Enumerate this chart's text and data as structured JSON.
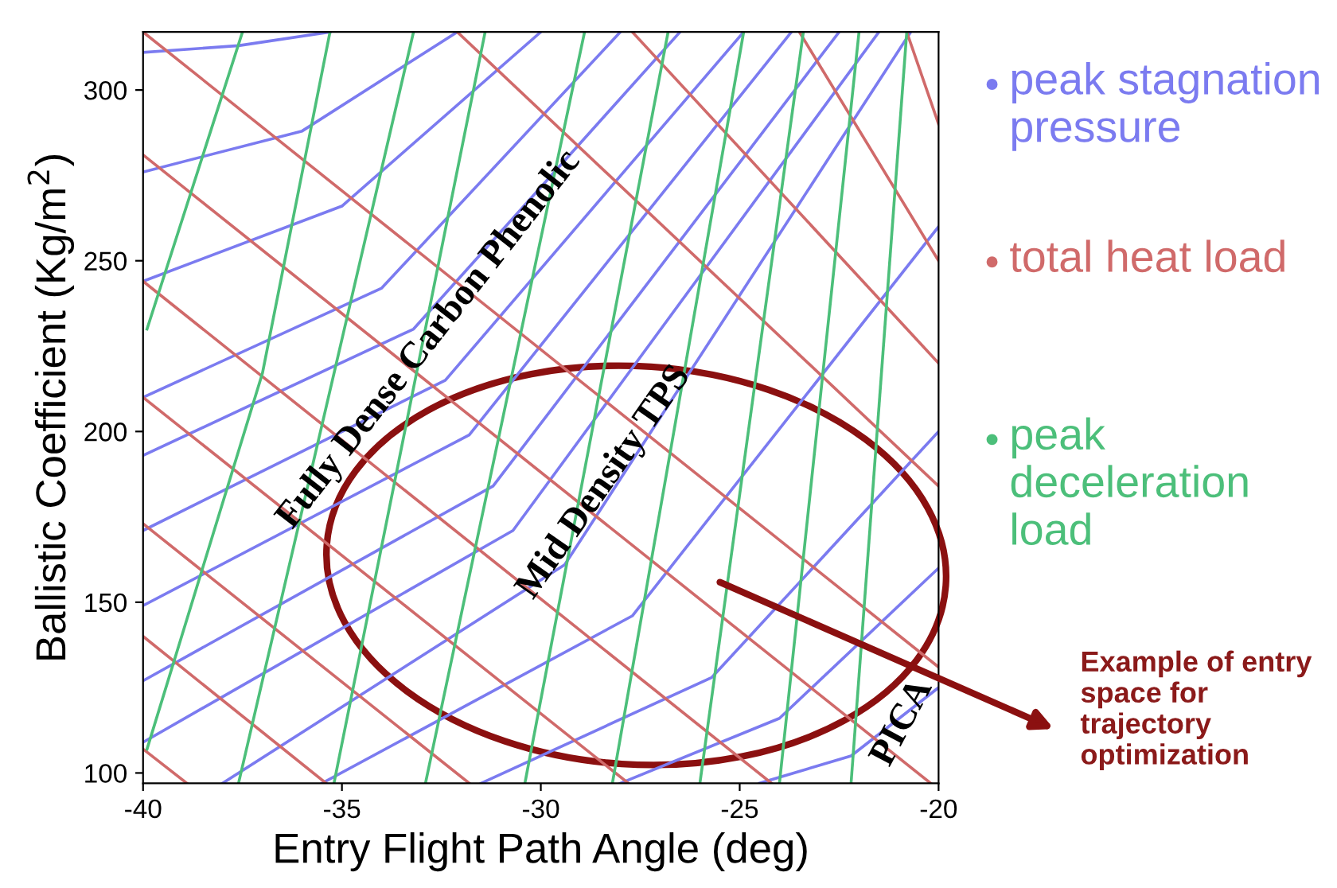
{
  "chart_data": {
    "type": "line",
    "xlabel": "Entry Flight Path Angle (deg)",
    "ylabel": "Ballistic Coefficient (Kg/m$^{2}$)",
    "xlim": [
      -40,
      -20
    ],
    "ylim": [
      97,
      317
    ],
    "xticks": [
      -40,
      -35,
      -30,
      -25,
      -20
    ],
    "yticks": [
      100,
      150,
      200,
      250,
      300
    ],
    "legend": "right",
    "grid": false,
    "marker": "none",
    "line_style": "solid",
    "series": [
      {
        "name": "peak stagnation pressure",
        "color": "#7b7bf0",
        "x": [
          -40,
          -37.6,
          -35.3
        ],
        "values": [
          311,
          313,
          317
        ]
      },
      {
        "color": "#7b7bf0",
        "x": [
          -40,
          -36,
          -32.1
        ],
        "values": [
          276,
          288,
          317
        ]
      },
      {
        "color": "#7b7bf0",
        "x": [
          -40,
          -35,
          -30
        ],
        "values": [
          244,
          266,
          317
        ]
      },
      {
        "color": "#7b7bf0",
        "x": [
          -40,
          -34,
          -28
        ],
        "values": [
          210,
          242,
          317
        ]
      },
      {
        "color": "#7b7bf0",
        "x": [
          -40,
          -33.2,
          -26.5
        ],
        "values": [
          193,
          230,
          317
        ]
      },
      {
        "color": "#7b7bf0",
        "x": [
          -40,
          -32.4,
          -24.9
        ],
        "values": [
          171,
          215,
          317
        ]
      },
      {
        "color": "#7b7bf0",
        "x": [
          -40,
          -31.8,
          -23.7
        ],
        "values": [
          149,
          199,
          317
        ]
      },
      {
        "color": "#7b7bf0",
        "x": [
          -40,
          -31.2,
          -22.5
        ],
        "values": [
          127,
          184,
          317
        ]
      },
      {
        "color": "#7b7bf0",
        "x": [
          -40,
          -30.7,
          -21.5
        ],
        "values": [
          109,
          171,
          317
        ]
      },
      {
        "color": "#7b7bf0",
        "x": [
          -38,
          -29.4,
          -20.7
        ],
        "values": [
          97,
          161,
          317
        ]
      },
      {
        "color": "#7b7bf0",
        "x": [
          -35.5,
          -27.7,
          -20
        ],
        "values": [
          97,
          146,
          260
        ]
      },
      {
        "color": "#7b7bf0",
        "x": [
          -31.5,
          -25.7,
          -20
        ],
        "values": [
          97,
          128,
          200
        ]
      },
      {
        "color": "#7b7bf0",
        "x": [
          -28,
          -24,
          -20
        ],
        "values": [
          97,
          116,
          160
        ]
      },
      {
        "color": "#7b7bf0",
        "x": [
          -24.5,
          -22.2,
          -20
        ],
        "values": [
          97,
          105,
          125
        ]
      },
      {
        "name": "total heat load",
        "color": "#d06a6a",
        "x": [
          -40,
          -20
        ],
        "values": [
          317,
          131
        ]
      },
      {
        "color": "#d06a6a",
        "x": [
          -40,
          -20.2
        ],
        "values": [
          281,
          97
        ]
      },
      {
        "color": "#d06a6a",
        "x": [
          -40,
          -24.2
        ],
        "values": [
          244,
          97
        ]
      },
      {
        "color": "#d06a6a",
        "x": [
          -40,
          -27.8
        ],
        "values": [
          210,
          97
        ]
      },
      {
        "color": "#d06a6a",
        "x": [
          -40,
          -31.8
        ],
        "values": [
          173,
          97
        ]
      },
      {
        "color": "#d06a6a",
        "x": [
          -40,
          -35.4
        ],
        "values": [
          140,
          97
        ]
      },
      {
        "color": "#d06a6a",
        "x": [
          -40,
          -38.9
        ],
        "values": [
          107,
          97
        ]
      },
      {
        "color": "#d06a6a",
        "x": [
          -32.1,
          -20
        ],
        "values": [
          317,
          184
        ]
      },
      {
        "color": "#d06a6a",
        "x": [
          -27.7,
          -20
        ],
        "values": [
          317,
          220
        ]
      },
      {
        "color": "#d06a6a",
        "x": [
          -23.5,
          -20
        ],
        "values": [
          317,
          250
        ]
      },
      {
        "color": "#d06a6a",
        "x": [
          -20.8,
          -20
        ],
        "values": [
          317,
          290
        ]
      },
      {
        "name": "peak deceleration load",
        "color": "#4cbf7a",
        "x": [
          -39.9,
          -37.5
        ],
        "values": [
          230,
          317
        ]
      },
      {
        "color": "#4cbf7a",
        "x": [
          -39.9,
          -37,
          -35.3
        ],
        "values": [
          107,
          217,
          317
        ]
      },
      {
        "color": "#4cbf7a",
        "x": [
          -37.6,
          -33.2
        ],
        "values": [
          97,
          317
        ]
      },
      {
        "color": "#4cbf7a",
        "x": [
          -35.2,
          -31.4
        ],
        "values": [
          97,
          317
        ]
      },
      {
        "color": "#4cbf7a",
        "x": [
          -32.9,
          -28.9
        ],
        "values": [
          97,
          317
        ]
      },
      {
        "color": "#4cbf7a",
        "x": [
          -30.4,
          -26.8
        ],
        "values": [
          97,
          317
        ]
      },
      {
        "color": "#4cbf7a",
        "x": [
          -28.2,
          -24.9
        ],
        "values": [
          97,
          317
        ]
      },
      {
        "color": "#4cbf7a",
        "x": [
          -26,
          -23.4
        ],
        "values": [
          97,
          317
        ]
      },
      {
        "color": "#4cbf7a",
        "x": [
          -24,
          -22
        ],
        "values": [
          97,
          317
        ]
      },
      {
        "color": "#4cbf7a",
        "x": [
          -22.2,
          -20.8
        ],
        "values": [
          97,
          317
        ]
      }
    ],
    "annotations": [
      "Fully Dense Carbon Phenolic",
      "Mid Density TPS",
      "PICA",
      "Example of entry space for trajectory optimization"
    ]
  }
}
